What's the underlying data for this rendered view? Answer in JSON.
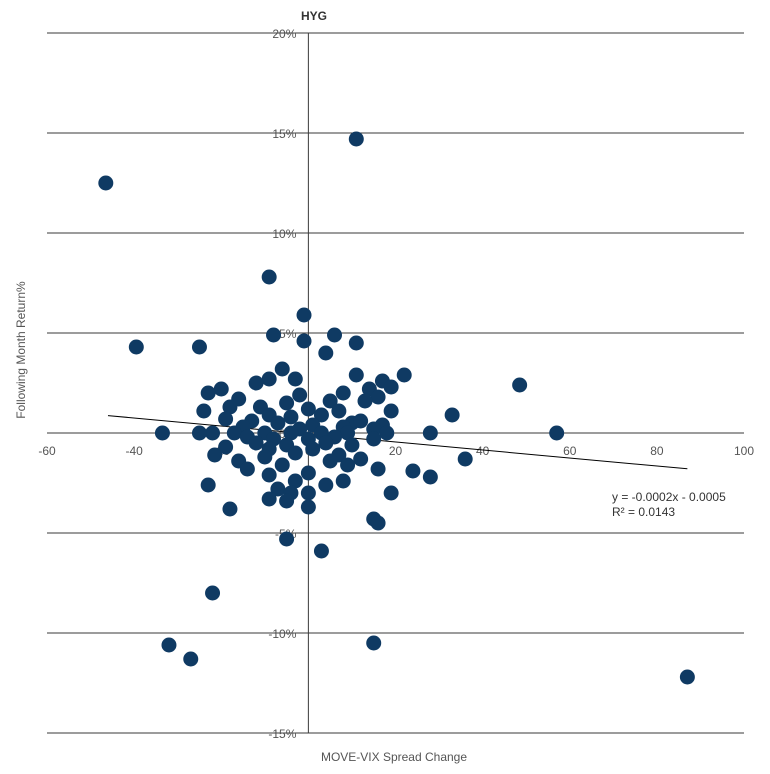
{
  "chart_data": {
    "type": "scatter",
    "title": "HYG",
    "xlabel": "MOVE-VIX Spread Change",
    "ylabel": "Following Month Return%",
    "xlim": [
      -60,
      100
    ],
    "ylim": [
      -15,
      20
    ],
    "x_ticks": [
      -60,
      -40,
      -20,
      0,
      20,
      40,
      60,
      80,
      100
    ],
    "y_ticks": [
      {
        "value": 20,
        "label": "20%"
      },
      {
        "value": 15,
        "label": "15%"
      },
      {
        "value": 10,
        "label": "10%"
      },
      {
        "value": 5,
        "label": "5%"
      },
      {
        "value": 0,
        "label": "0%"
      },
      {
        "value": -5,
        "label": "-5%"
      },
      {
        "value": -10,
        "label": "-10%"
      },
      {
        "value": -15,
        "label": "-15%"
      }
    ],
    "grid": {
      "horizontal": true,
      "vertical": false
    },
    "colors": {
      "point": "#0f3a63",
      "trendline": "#000000",
      "grid": "#3a3a3a"
    },
    "trendline": {
      "slope": -0.0002,
      "intercept": -0.0005,
      "x_range": [
        -46,
        87
      ],
      "equation": "y = -0.0002x - 0.0005",
      "r_squared": "R² = 0.0143"
    },
    "points": [
      {
        "x": -46.5,
        "y": 12.5
      },
      {
        "x": 11,
        "y": 14.7
      },
      {
        "x": -9,
        "y": 7.8
      },
      {
        "x": -1,
        "y": 5.9
      },
      {
        "x": -8,
        "y": 4.9
      },
      {
        "x": -1,
        "y": 4.6
      },
      {
        "x": 6,
        "y": 4.9
      },
      {
        "x": 11,
        "y": 4.5
      },
      {
        "x": -39.5,
        "y": 4.3
      },
      {
        "x": -25,
        "y": 4.3
      },
      {
        "x": 4,
        "y": 4.0
      },
      {
        "x": -6,
        "y": 3.2
      },
      {
        "x": -9,
        "y": 2.7
      },
      {
        "x": -3,
        "y": 2.7
      },
      {
        "x": 11,
        "y": 2.9
      },
      {
        "x": 22,
        "y": 2.9
      },
      {
        "x": 17,
        "y": 2.6
      },
      {
        "x": -12,
        "y": 2.5
      },
      {
        "x": -20,
        "y": 2.2
      },
      {
        "x": -23,
        "y": 2.0
      },
      {
        "x": 8,
        "y": 2.0
      },
      {
        "x": 14,
        "y": 2.2
      },
      {
        "x": 19,
        "y": 2.3
      },
      {
        "x": 48.5,
        "y": 2.4
      },
      {
        "x": -2,
        "y": 1.9
      },
      {
        "x": 16,
        "y": 1.8
      },
      {
        "x": -16,
        "y": 1.7
      },
      {
        "x": 5,
        "y": 1.6
      },
      {
        "x": -5,
        "y": 1.5
      },
      {
        "x": 13,
        "y": 1.6
      },
      {
        "x": -18,
        "y": 1.3
      },
      {
        "x": -11,
        "y": 1.3
      },
      {
        "x": 0,
        "y": 1.2
      },
      {
        "x": 7,
        "y": 1.1
      },
      {
        "x": -24,
        "y": 1.1
      },
      {
        "x": 19,
        "y": 1.1
      },
      {
        "x": 33,
        "y": 0.9
      },
      {
        "x": -9,
        "y": 0.9
      },
      {
        "x": -4,
        "y": 0.8
      },
      {
        "x": 3,
        "y": 0.9
      },
      {
        "x": -19,
        "y": 0.7
      },
      {
        "x": -13,
        "y": 0.6
      },
      {
        "x": 10,
        "y": 0.5
      },
      {
        "x": 12,
        "y": 0.6
      },
      {
        "x": -7,
        "y": 0.5
      },
      {
        "x": 1,
        "y": 0.4
      },
      {
        "x": 17,
        "y": 0.4
      },
      {
        "x": -15,
        "y": 0.3
      },
      {
        "x": -2,
        "y": 0.2
      },
      {
        "x": 8,
        "y": 0.3
      },
      {
        "x": 15,
        "y": 0.2
      },
      {
        "x": -22,
        "y": 0.0
      },
      {
        "x": -33.5,
        "y": 0.0
      },
      {
        "x": -25,
        "y": 0.0
      },
      {
        "x": -17,
        "y": 0.0
      },
      {
        "x": -10,
        "y": 0.0
      },
      {
        "x": -4,
        "y": 0.0
      },
      {
        "x": 3,
        "y": 0.0
      },
      {
        "x": 9,
        "y": 0.0
      },
      {
        "x": 18,
        "y": 0.0
      },
      {
        "x": 28,
        "y": 0.0
      },
      {
        "x": 57,
        "y": 0.0
      },
      {
        "x": -14,
        "y": -0.2
      },
      {
        "x": -8,
        "y": -0.3
      },
      {
        "x": 0,
        "y": -0.3
      },
      {
        "x": 6,
        "y": -0.2
      },
      {
        "x": 15,
        "y": -0.3
      },
      {
        "x": -12,
        "y": -0.5
      },
      {
        "x": -5,
        "y": -0.6
      },
      {
        "x": 4,
        "y": -0.5
      },
      {
        "x": 10,
        "y": -0.6
      },
      {
        "x": -19,
        "y": -0.7
      },
      {
        "x": -9,
        "y": -0.8
      },
      {
        "x": 1,
        "y": -0.8
      },
      {
        "x": -21.5,
        "y": -1.1
      },
      {
        "x": -3,
        "y": -1.0
      },
      {
        "x": 7,
        "y": -1.1
      },
      {
        "x": -10,
        "y": -1.2
      },
      {
        "x": 5,
        "y": -1.4
      },
      {
        "x": -16,
        "y": -1.4
      },
      {
        "x": 12,
        "y": -1.3
      },
      {
        "x": 36,
        "y": -1.3
      },
      {
        "x": -6,
        "y": -1.6
      },
      {
        "x": 9,
        "y": -1.6
      },
      {
        "x": -14,
        "y": -1.8
      },
      {
        "x": 16,
        "y": -1.8
      },
      {
        "x": 24,
        "y": -1.9
      },
      {
        "x": -9,
        "y": -2.1
      },
      {
        "x": 0,
        "y": -2.0
      },
      {
        "x": 28,
        "y": -2.2
      },
      {
        "x": -3,
        "y": -2.4
      },
      {
        "x": 4,
        "y": -2.6
      },
      {
        "x": 8,
        "y": -2.4
      },
      {
        "x": -23,
        "y": -2.6
      },
      {
        "x": -7,
        "y": -2.8
      },
      {
        "x": -4,
        "y": -3.0
      },
      {
        "x": 0,
        "y": -3.0
      },
      {
        "x": 19,
        "y": -3.0
      },
      {
        "x": -9,
        "y": -3.3
      },
      {
        "x": -5,
        "y": -3.4
      },
      {
        "x": -18,
        "y": -3.8
      },
      {
        "x": 0,
        "y": -3.7
      },
      {
        "x": 15,
        "y": -4.3
      },
      {
        "x": 16,
        "y": -4.5
      },
      {
        "x": -5,
        "y": -5.3
      },
      {
        "x": 3,
        "y": -5.9
      },
      {
        "x": -22,
        "y": -8.0
      },
      {
        "x": -32,
        "y": -10.6
      },
      {
        "x": 15,
        "y": -10.5
      },
      {
        "x": -27,
        "y": -11.3
      },
      {
        "x": 87,
        "y": -12.2
      }
    ]
  }
}
